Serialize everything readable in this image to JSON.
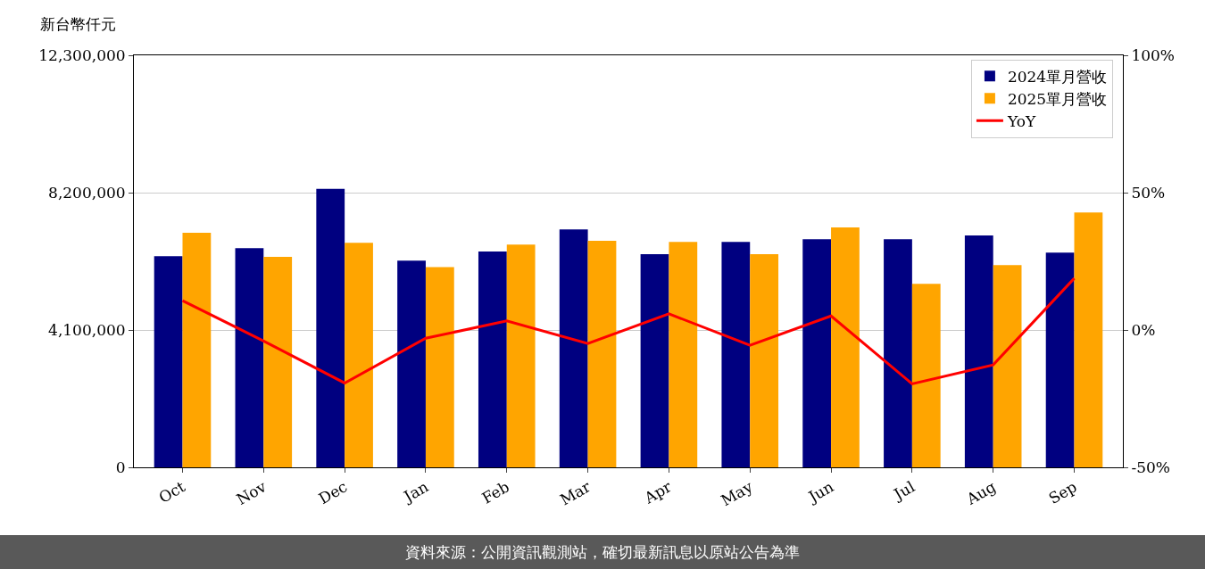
{
  "chart_data": {
    "type": "bar",
    "ylabel": "新台幣仟元",
    "categories": [
      "Oct",
      "Nov",
      "Dec",
      "Jan",
      "Feb",
      "Mar",
      "Apr",
      "May",
      "Jun",
      "Jul",
      "Aug",
      "Sep"
    ],
    "series": [
      {
        "name": "2024單月營收",
        "color": "#000080",
        "values": [
          6300000,
          6540000,
          8310000,
          6170000,
          6440000,
          7100000,
          6360000,
          6730000,
          6810000,
          6810000,
          6920000,
          6410000
        ]
      },
      {
        "name": "2025單月營收",
        "color": "#ffa500",
        "values": [
          7000000,
          6280000,
          6700000,
          5980000,
          6650000,
          6760000,
          6730000,
          6360000,
          7160000,
          5480000,
          6040000,
          7610000
        ]
      },
      {
        "name": "YoY",
        "type": "line",
        "axis": "y2",
        "color": "#ff0000",
        "values": [
          10.7,
          -4,
          -19.3,
          -3,
          3.3,
          -4.9,
          5.9,
          -5.6,
          5.1,
          -19.6,
          -12.7,
          18.8
        ]
      }
    ],
    "ylim": [
      0,
      12300000
    ],
    "yticks": [
      {
        "value": 0,
        "label": "0"
      },
      {
        "value": 4100000,
        "label": "4,100,000"
      },
      {
        "value": 8200000,
        "label": "8,200,000"
      },
      {
        "value": 12300000,
        "label": "12,300,000"
      }
    ],
    "y2lim": [
      -50,
      100
    ],
    "y2ticks": [
      {
        "value": -50,
        "label": "-50%"
      },
      {
        "value": 0,
        "label": "0%"
      },
      {
        "value": 50,
        "label": "50%"
      },
      {
        "value": 100,
        "label": "100%"
      }
    ],
    "grid": "y",
    "legend": "top right",
    "marker": "none",
    "line_style": "solid",
    "annotations": [
      "資料來源：公開資訊觀測站，確切最新訊息以原站公告為準"
    ]
  }
}
